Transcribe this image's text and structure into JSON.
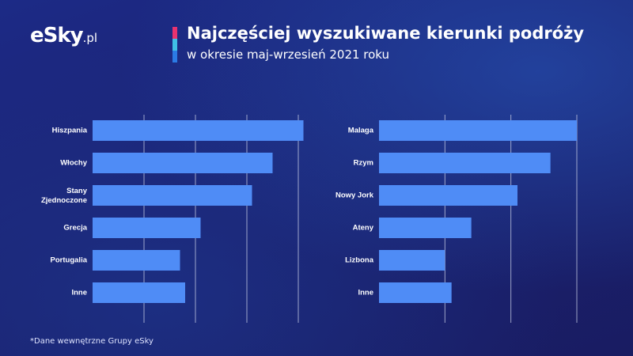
{
  "brand": {
    "logo_main": "eSky",
    "logo_suffix": ".pl"
  },
  "colors": {
    "bar": "#4f8cf6",
    "gridline": "#c9cfe6",
    "accent_pink": "#e8336f",
    "accent_cyan": "#3fc1e6",
    "accent_blue": "#2b7be5"
  },
  "header": {
    "title": "Najczęściej wyszukiwane kierunki podróży",
    "subtitle": "w okresie maj-wrzesień 2021 roku"
  },
  "footnote": "*Dane wewnętrzne Grupy eSky",
  "chart_data": [
    {
      "type": "bar",
      "orientation": "horizontal",
      "categories": [
        "Hiszpania",
        "Włochy",
        "Stany Zjednoczone",
        "Grecja",
        "Portugalia",
        "Inne"
      ],
      "values": [
        4.1,
        3.5,
        3.1,
        2.1,
        1.7,
        1.8
      ],
      "xlim": [
        0,
        4
      ],
      "gridlines": [
        1,
        2,
        3,
        4
      ]
    },
    {
      "type": "bar",
      "orientation": "horizontal",
      "categories": [
        "Malaga",
        "Rzym",
        "Nowy Jork",
        "Ateny",
        "Lizbona",
        "Inne"
      ],
      "values": [
        3.0,
        2.6,
        2.1,
        1.4,
        1.0,
        1.1
      ],
      "xlim": [
        0,
        3.3
      ],
      "gridlines": [
        1,
        2,
        3
      ]
    }
  ]
}
